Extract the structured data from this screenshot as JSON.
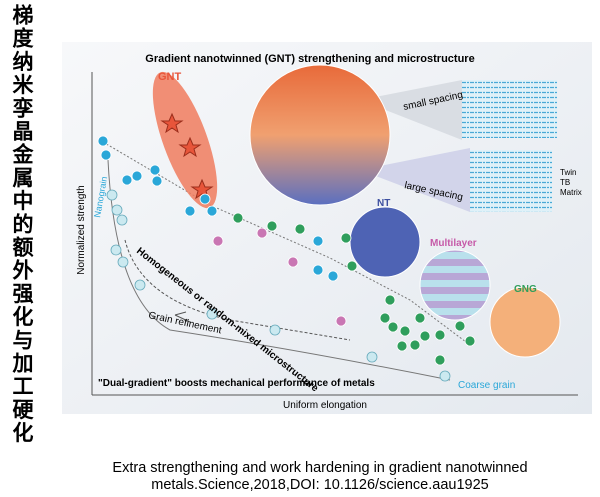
{
  "side_title": "梯度纳米孪晶金属中的额外强化与加工硬化",
  "figure": {
    "title": "Gradient nanotwinned (GNT) strengthening and microstructure",
    "labels": {
      "gnt": "GNT",
      "small_spacing": "small spacing",
      "large_spacing": "large spacing",
      "twin": "Twin",
      "tb": "TB",
      "matrix": "Matrix",
      "nt": "NT",
      "multilayer": "Multilayer",
      "gng": "GNG",
      "nanograin": "Nanograin",
      "homogeneous": "Homogeneous or random-mixed microstructure",
      "grain_refinement": "Grain refinement",
      "coarse_grain": "Coarse grain",
      "dual_gradient": "\"Dual-gradient\" boosts mechanical performance of metals"
    },
    "axes": {
      "y": "Normalized strength",
      "x": "Uniform elongation"
    }
  },
  "caption": [
    "Extra strengthening and work hardening in gradient nanotwinned",
    "metals.Science,2018,DOI: 10.1126/science.aau1925"
  ]
}
